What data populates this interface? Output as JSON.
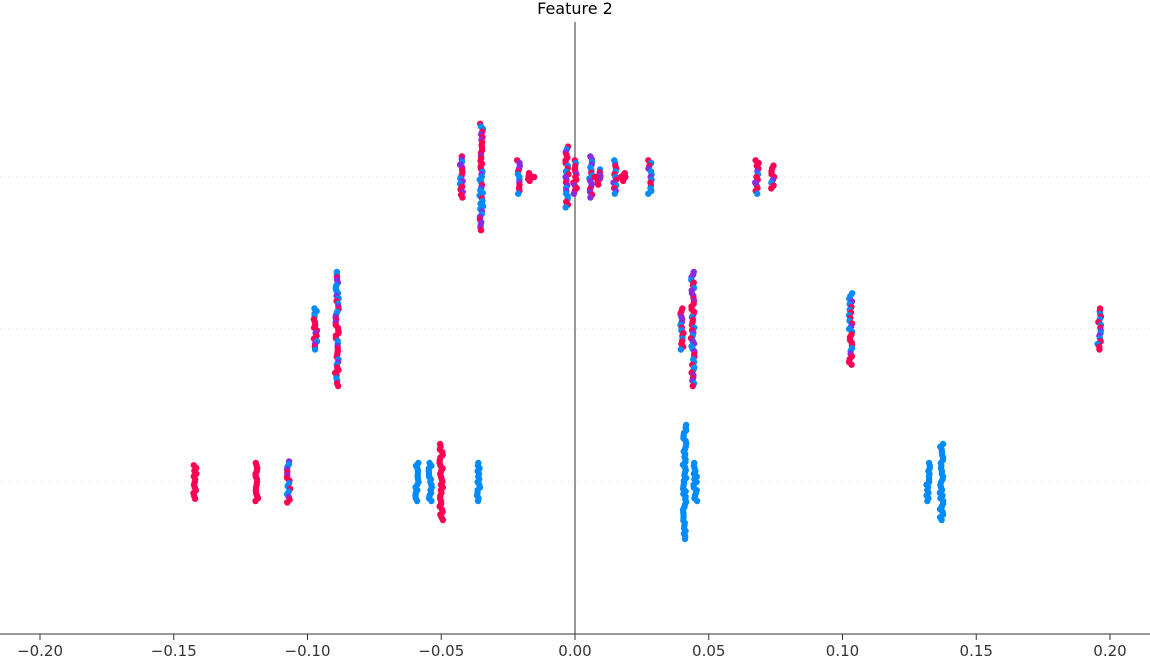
{
  "chart_data": {
    "type": "scatter",
    "title": "Feature 2",
    "xlabel": "",
    "ylabel": "",
    "xlim": [
      -0.2,
      0.2
    ],
    "x_ticks": [
      "−0.20",
      "−0.15",
      "−0.10",
      "−0.05",
      "0.00",
      "0.05",
      "0.10",
      "0.15",
      "0.20"
    ],
    "x_tick_values": [
      -0.2,
      -0.15,
      -0.1,
      -0.05,
      0.0,
      0.05,
      0.1,
      0.15,
      0.2
    ],
    "rows": 3,
    "zero_line": true,
    "grid": "horizontal dotted per row",
    "colors": {
      "high": "#ff0052",
      "low": "#008bfb",
      "mid": "#8a2be2",
      "zero_line": "#999999"
    },
    "series": [
      {
        "row": 0,
        "clusters": [
          {
            "x": -0.0425,
            "spread": 0.27,
            "color": "mixed"
          },
          {
            "x": -0.035,
            "spread": 0.7,
            "color": "mixed"
          },
          {
            "x": -0.021,
            "spread": 0.22,
            "color": "mixed"
          },
          {
            "x": -0.017,
            "spread": 0.05,
            "color": "high"
          },
          {
            "x": -0.003,
            "spread": 0.4,
            "color": "mixed"
          },
          {
            "x": 0.0,
            "spread": 0.22,
            "color": "mixed"
          },
          {
            "x": 0.006,
            "spread": 0.27,
            "color": "mixed"
          },
          {
            "x": 0.009,
            "spread": 0.1,
            "color": "mixed"
          },
          {
            "x": 0.015,
            "spread": 0.22,
            "color": "mixed"
          },
          {
            "x": 0.018,
            "spread": 0.05,
            "color": "high"
          },
          {
            "x": 0.028,
            "spread": 0.22,
            "color": "mixed"
          },
          {
            "x": 0.068,
            "spread": 0.22,
            "color": "mixed"
          },
          {
            "x": 0.074,
            "spread": 0.15,
            "color": "mixed"
          }
        ]
      },
      {
        "row": 1,
        "clusters": [
          {
            "x": -0.097,
            "spread": 0.27,
            "color": "mixed"
          },
          {
            "x": -0.089,
            "spread": 0.75,
            "color": "mixed"
          },
          {
            "x": 0.04,
            "spread": 0.27,
            "color": "mixed"
          },
          {
            "x": 0.044,
            "spread": 0.75,
            "color": "mixed"
          },
          {
            "x": 0.103,
            "spread": 0.47,
            "color": "mixed"
          },
          {
            "x": 0.196,
            "spread": 0.27,
            "color": "mixed"
          }
        ]
      },
      {
        "row": 2,
        "clusters": [
          {
            "x": -0.142,
            "spread": 0.22,
            "color": "high"
          },
          {
            "x": -0.119,
            "spread": 0.25,
            "color": "high"
          },
          {
            "x": -0.107,
            "spread": 0.27,
            "color": "mixed"
          },
          {
            "x": -0.059,
            "spread": 0.25,
            "color": "low"
          },
          {
            "x": -0.054,
            "spread": 0.25,
            "color": "low"
          },
          {
            "x": -0.05,
            "spread": 0.5,
            "color": "high"
          },
          {
            "x": -0.036,
            "spread": 0.25,
            "color": "low"
          },
          {
            "x": 0.041,
            "spread": 0.75,
            "color": "low"
          },
          {
            "x": 0.045,
            "spread": 0.25,
            "color": "low"
          },
          {
            "x": 0.132,
            "spread": 0.25,
            "color": "low"
          },
          {
            "x": 0.137,
            "spread": 0.5,
            "color": "low"
          }
        ]
      }
    ]
  }
}
